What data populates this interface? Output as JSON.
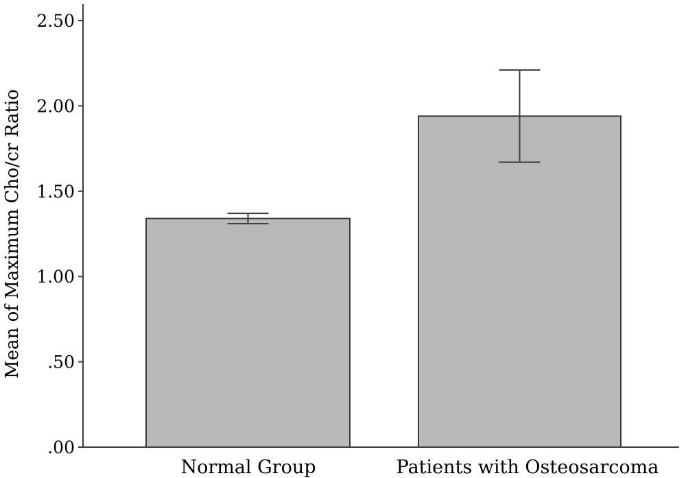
{
  "chart_data": {
    "type": "bar",
    "title": "",
    "xlabel": "",
    "ylabel": "Mean of Maximum Cho/cr Ratio",
    "categories": [
      "Normal Group",
      "Patients with Osteosarcoma"
    ],
    "values": [
      1.34,
      1.94
    ],
    "error_bars": [
      {
        "low": 1.31,
        "high": 1.37
      },
      {
        "low": 1.67,
        "high": 2.21
      }
    ],
    "ylim": [
      0,
      2.6
    ],
    "yticks": [
      0,
      0.5,
      1.0,
      1.5,
      2.0,
      2.5
    ],
    "ytick_labels": [
      ".00",
      ".50",
      "1.00",
      "1.50",
      "2.00",
      "2.50"
    ],
    "grid": false,
    "legend": "none",
    "colors": {
      "bar_fill": "#b9b9b9",
      "bar_stroke": "#3a3a3a",
      "axis": "#3a3a3a",
      "error_bar": "#3a3a3a"
    }
  }
}
